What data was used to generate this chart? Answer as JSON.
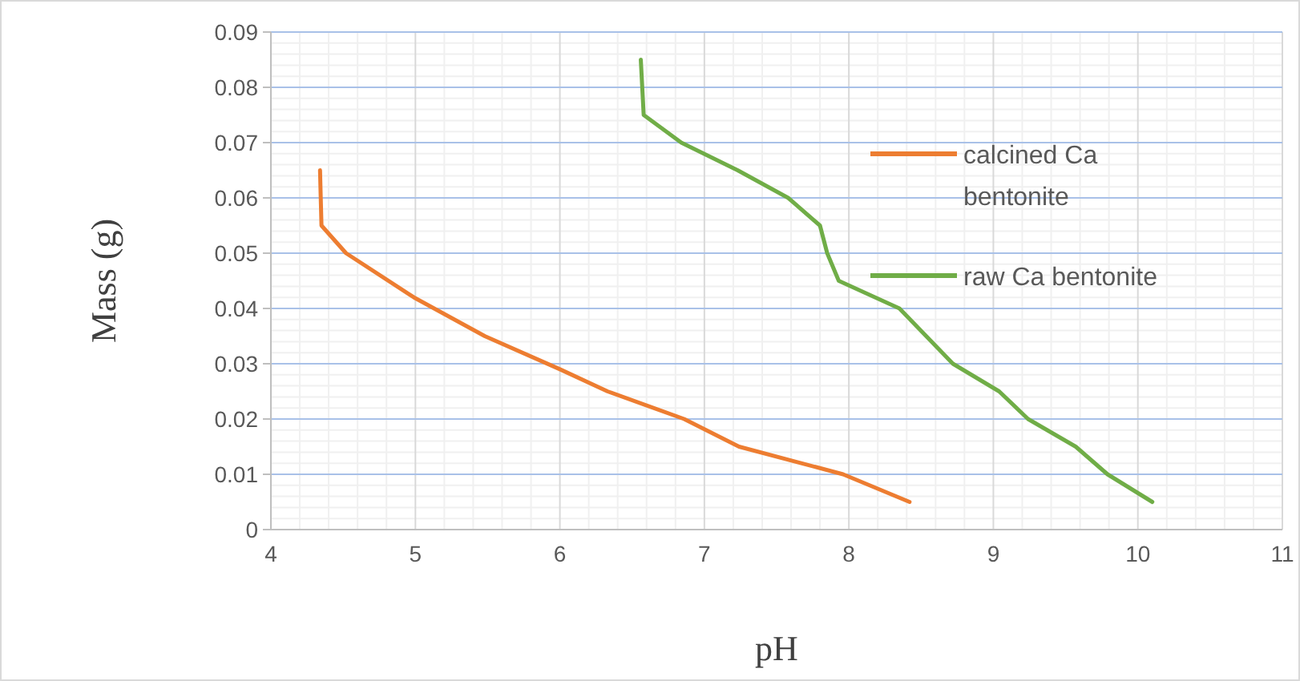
{
  "chart_data": {
    "type": "line",
    "xlabel": "pH",
    "ylabel": "Mass (g)",
    "xlim": [
      4,
      11
    ],
    "xticks": [
      4,
      5,
      6,
      7,
      8,
      9,
      10,
      11
    ],
    "ylim": [
      0,
      0.09
    ],
    "yticks": [
      0,
      0.01,
      0.02,
      0.03,
      0.04,
      0.05,
      0.06,
      0.07,
      0.08,
      0.09
    ],
    "grid": true,
    "legend": "right",
    "marker": "none",
    "line_style": "solid",
    "series": [
      {
        "name": "calcined Ca bentonite",
        "color": "#ed7d31",
        "x": [
          4.34,
          4.35,
          4.52,
          4.99,
          5.48,
          6.0,
          6.33,
          6.86,
          7.24,
          7.96,
          8.42
        ],
        "values": [
          0.065,
          0.055,
          0.05,
          0.042,
          0.035,
          0.029,
          0.025,
          0.02,
          0.015,
          0.01,
          0.005
        ]
      },
      {
        "name": "raw Ca bentonite",
        "color": "#70ad47",
        "x": [
          6.56,
          6.58,
          6.84,
          7.23,
          7.58,
          7.8,
          7.85,
          7.93,
          8.35,
          8.72,
          9.04,
          9.24,
          9.57,
          9.79,
          10.1
        ],
        "values": [
          0.085,
          0.075,
          0.07,
          0.065,
          0.06,
          0.055,
          0.05,
          0.045,
          0.04,
          0.03,
          0.025,
          0.02,
          0.015,
          0.01,
          0.005
        ]
      }
    ]
  }
}
